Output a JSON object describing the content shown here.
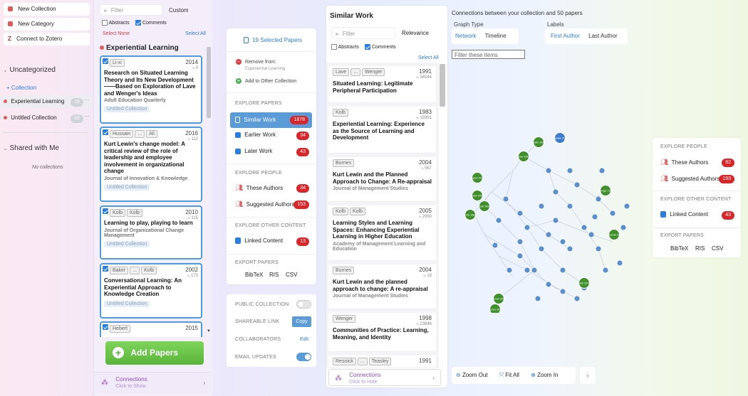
{
  "sidebar": {
    "actions": [
      {
        "label": "New Collection",
        "icon": "collection-icon"
      },
      {
        "label": "New Category",
        "icon": "category-icon"
      },
      {
        "label": "Connect to Zotero",
        "icon": "zotero-icon"
      }
    ],
    "uncategorized": {
      "title": "Uncategorized",
      "add_label": "+ Collection",
      "items": [
        {
          "label": "Experiential Learning",
          "count": "19"
        },
        {
          "label": "Untitled Collection",
          "count": "19"
        }
      ]
    },
    "shared": {
      "title": "Shared with Me",
      "empty": "No collections"
    }
  },
  "collection": {
    "filter_placeholder": "Filter",
    "sort": "Custom",
    "abstracts": "Abstracts",
    "comments": "Comments",
    "select_none": "Select None",
    "select_all": "Select All",
    "title": "Experiential Learning",
    "papers": [
      {
        "authors": [
          "Li-xi"
        ],
        "year": "2014",
        "cites": "0",
        "title": "Research on Situated Learning Theory and Its New Development——Based on Exploration of Lave and Wenger's Ideas",
        "journal": "Adult Education Quarterly",
        "collection": "Untitled Collection"
      },
      {
        "authors": [
          "Hussain",
          "...",
          "Ali"
        ],
        "year": "2016",
        "cites": "112",
        "title": "Kurt Lewin's change model: A critical review of the role of leadership and employee involvement in organizational change",
        "journal": "Journal of Innovation & Knowledge",
        "collection": "Untitled Collection"
      },
      {
        "authors": [
          "Kolb",
          "Kolb"
        ],
        "year": "2010",
        "cites": "115",
        "title": "Learning to play, playing to learn",
        "journal": "Journal of Organizational Change Management",
        "collection": "Untitled Collection"
      },
      {
        "authors": [
          "Baker",
          "...",
          "Kolb"
        ],
        "year": "2002",
        "cites": "172",
        "title": "Conversational Learning: An Experiential Approach to Knowledge Creation",
        "journal": "",
        "collection": "Untitled Collection"
      },
      {
        "authors": [
          "Hebert"
        ],
        "year": "2015",
        "cites": "",
        "title": "",
        "journal": "",
        "collection": ""
      }
    ],
    "add_papers": "Add Papers",
    "connections": "Connections",
    "connections_sub": "Click to Show"
  },
  "middle": {
    "selected": "19 Selected Papers",
    "remove_from": "Remove from:",
    "remove_target": "Experiential Learning",
    "add_other": "Add to Other Collection",
    "explore_papers": "EXPLORE PAPERS",
    "similar": {
      "label": "Similar Work",
      "count": "1878"
    },
    "earlier": {
      "label": "Earlier Work",
      "count": "34"
    },
    "later": {
      "label": "Later Work",
      "count": "43"
    },
    "explore_people": "EXPLORE PEOPLE",
    "these_authors": {
      "label": "These Authors",
      "count": "34"
    },
    "suggested": {
      "label": "Suggested Authors",
      "count": "153"
    },
    "explore_other": "EXPLORE OTHER CONTENT",
    "linked": {
      "label": "Linked Content",
      "count": "13"
    },
    "export": "EXPORT PAPERS",
    "bibtex": "BibTeX",
    "ris": "RIS",
    "csv": "CSV",
    "public": "PUBLIC COLLECTION",
    "share": "SHAREABLE LINK",
    "copy": "Copy",
    "collab": "COLLABORATORS",
    "edit": "Edit",
    "email": "EMAIL UPDATES"
  },
  "similar": {
    "title": "Similar Work",
    "filter_placeholder": "Filter",
    "sort": "Relevance",
    "abstracts": "Abstracts",
    "comments": "Comments",
    "select_all": "Select All",
    "items": [
      {
        "authors": [
          "Lave",
          "...",
          "Wenger"
        ],
        "year": "1991",
        "cites": "34544",
        "title": "Situated Learning: Legitimate Peripheral Participation",
        "journal": ""
      },
      {
        "authors": [
          "Kolb"
        ],
        "year": "1983",
        "cites": "19391",
        "title": "Experiential Learning: Experience as the Source of Learning and Development",
        "journal": ""
      },
      {
        "authors": [
          "Burnes"
        ],
        "year": "2004",
        "cites": "567",
        "title": "Kurt Lewin and the Planned Approach to Change: A Re-appraisal",
        "journal": "Journal of Management Studies"
      },
      {
        "authors": [
          "Kolb",
          "Kolb"
        ],
        "year": "2005",
        "cites": "2950",
        "title": "Learning Styles and Learning Spaces: Enhancing Experiential Learning in Higher Education",
        "journal": "Academy of Management Learning and Education"
      },
      {
        "authors": [
          "Burnes"
        ],
        "year": "2004",
        "cites": "18",
        "title": "Kurt Lewin and the planned approach to change: A re-appraisal",
        "journal": "Journal of Management Studies"
      },
      {
        "authors": [
          "Wenger"
        ],
        "year": "1998",
        "cites": "23846",
        "title": "Communities of Practice: Learning, Meaning, and Identity",
        "journal": ""
      },
      {
        "authors": [
          "Resnick",
          "...",
          "Teasley"
        ],
        "year": "1991",
        "cites": "",
        "title": "",
        "journal": ""
      }
    ],
    "connections": "Connections",
    "connections_sub": "Click to Hide"
  },
  "graph": {
    "header": "Connections between your collection and 50 papers",
    "graph_type": "Graph Type",
    "labels": "Labels",
    "network": "Network",
    "timeline": "Timeline",
    "first_author": "First Author",
    "last_author": "Last Author",
    "filter_placeholder": "Filter these items",
    "zoom_out": "Zoom Out",
    "fit_all": "Fit All",
    "zoom_in": "Zoom In",
    "labeled_nodes": [
      {
        "label": "Lave 1991",
        "color": "#3f8f2a"
      },
      {
        "label": "Lewin 1947",
        "color": "#3f8f2a"
      },
      {
        "label": "Hussain 2016",
        "color": "#3b7bd0"
      },
      {
        "label": "Kayes 2005",
        "color": "#3f8f2a"
      },
      {
        "label": "Baker 2002",
        "color": "#3f8f2a"
      },
      {
        "label": "Kolb 1983",
        "color": "#3f8f2a"
      },
      {
        "label": "Kolb 2005",
        "color": "#3f8f2a"
      },
      {
        "label": "Burnes 2004",
        "color": "#3f8f2a"
      },
      {
        "label": "Burnes 2017",
        "color": "#3f8f2a"
      },
      {
        "label": "Holloman 2014",
        "color": "#3f8f2a"
      },
      {
        "label": "Kolb 2010",
        "color": "#3f8f2a"
      },
      {
        "label": "Wenger 1998",
        "color": "#3f8f2a"
      }
    ]
  },
  "right": {
    "explore_people": "EXPLORE PEOPLE",
    "these_authors": {
      "label": "These Authors",
      "count": "82"
    },
    "suggested": {
      "label": "Suggested Authors",
      "count": "193"
    },
    "explore_other": "EXPLORE OTHER CONTENT",
    "linked": {
      "label": "Linked Content",
      "count": "43"
    },
    "export": "EXPORT PAPERS",
    "bibtex": "BibTeX",
    "ris": "RIS",
    "csv": "CSV"
  }
}
